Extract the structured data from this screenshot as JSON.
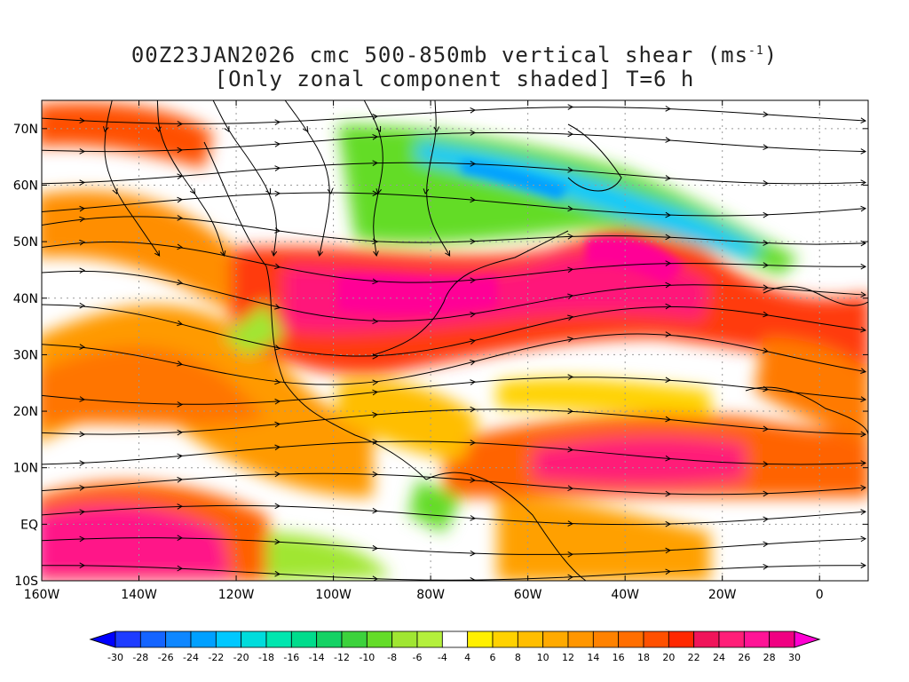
{
  "title": {
    "line1_prefix": "00Z23JAN2026 cmc 500-850mb vertical shear (ms",
    "line1_sup": "-1",
    "line1_suffix": ")",
    "line2": "[Only zonal component shaded] T=6 h"
  },
  "map": {
    "lat_ticks": [
      "70N",
      "60N",
      "50N",
      "40N",
      "30N",
      "20N",
      "10N",
      "EQ",
      "10S"
    ],
    "lat_values": [
      70,
      60,
      50,
      40,
      30,
      20,
      10,
      0,
      -10
    ],
    "lon_ticks": [
      "160W",
      "140W",
      "120W",
      "100W",
      "80W",
      "60W",
      "40W",
      "20W",
      "0"
    ],
    "lon_values": [
      -160,
      -140,
      -120,
      -100,
      -80,
      -60,
      -40,
      -20,
      0
    ],
    "lon_range": [
      -160,
      10
    ],
    "lat_range": [
      -10,
      75
    ],
    "grid": "dotted",
    "streamlines": true
  },
  "colorbar": {
    "labels": [
      "-30",
      "-28",
      "-26",
      "-24",
      "-22",
      "-20",
      "-18",
      "-16",
      "-14",
      "-12",
      "-10",
      "-8",
      "-6",
      "-4",
      "4",
      "6",
      "8",
      "10",
      "12",
      "14",
      "16",
      "18",
      "20",
      "22",
      "24",
      "26",
      "28",
      "30"
    ],
    "colors": [
      "#1e3cff",
      "#1464ff",
      "#0f87ff",
      "#00a0ff",
      "#00c8ff",
      "#00dcdc",
      "#00e6af",
      "#00dc8c",
      "#14d264",
      "#3cd23c",
      "#64dc28",
      "#a0e632",
      "#b4f03c",
      "#ffffff",
      "#fff000",
      "#ffd200",
      "#ffbe00",
      "#ffaa00",
      "#ff9600",
      "#ff8200",
      "#ff6e00",
      "#ff5000",
      "#ff2800",
      "#f0145a",
      "#ff1e78",
      "#ff1496",
      "#f00082"
    ],
    "min_arrow_color": "#0000ff",
    "max_arrow_color": "#ff00d2"
  }
}
